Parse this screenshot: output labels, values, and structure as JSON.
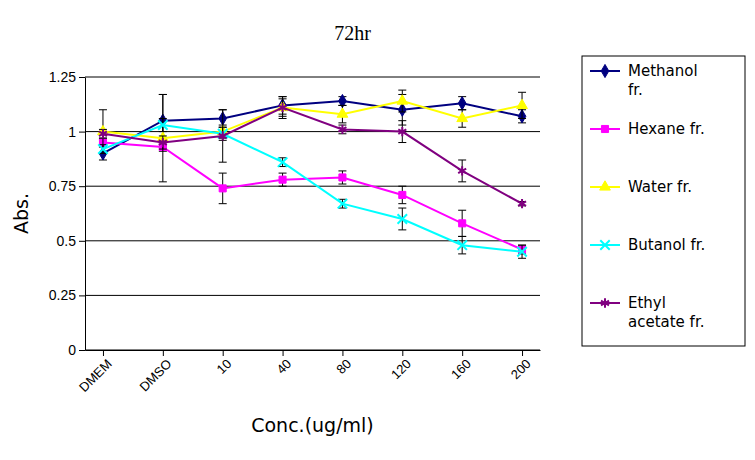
{
  "chart_data": {
    "type": "line",
    "title": "72hr",
    "x_label": "Conc.(ug/ml)",
    "y_label": "Abs.",
    "categories": [
      "DMEM",
      "DMSO",
      "10",
      "40",
      "80",
      "120",
      "160",
      "200"
    ],
    "ylim": [
      0,
      1.25
    ],
    "yticks": [
      0,
      0.25,
      0.5,
      0.75,
      1,
      1.25
    ],
    "grid": true,
    "legend": "right",
    "series": [
      {
        "name": "Methanol fr.",
        "color": "#000080",
        "marker": "diamond",
        "values": [
          0.9,
          1.05,
          1.06,
          1.12,
          1.14,
          1.1,
          1.13,
          1.07
        ],
        "errors": [
          0.03,
          0.12,
          0.04,
          0.04,
          0.02,
          0.07,
          0.03,
          0.03
        ]
      },
      {
        "name": "Hexane fr.",
        "color": "#ff00ff",
        "marker": "square",
        "values": [
          0.95,
          0.93,
          0.74,
          0.78,
          0.79,
          0.71,
          0.58,
          0.46
        ],
        "errors": [
          0.02,
          0.02,
          0.07,
          0.03,
          0.03,
          0.04,
          0.06,
          0.02
        ]
      },
      {
        "name": "Water fr.",
        "color": "#ffff00",
        "marker": "triangle",
        "values": [
          1.0,
          0.97,
          1.0,
          1.11,
          1.08,
          1.14,
          1.06,
          1.12
        ],
        "errors": [
          0.1,
          0.2,
          0.03,
          0.04,
          0.04,
          0.05,
          0.04,
          0.06
        ]
      },
      {
        "name": "Butanol fr.",
        "color": "#00ffff",
        "marker": "x",
        "values": [
          0.92,
          1.03,
          0.99,
          0.86,
          0.67,
          0.6,
          0.48,
          0.45
        ],
        "errors": [
          0.02,
          0.03,
          0.03,
          0.02,
          0.02,
          0.05,
          0.04,
          0.03
        ]
      },
      {
        "name": "Ethyl acetate fr.",
        "color": "#800080",
        "marker": "asterisk",
        "values": [
          0.99,
          0.95,
          0.98,
          1.11,
          1.01,
          1.0,
          0.82,
          0.67
        ],
        "errors": [
          0.02,
          0.03,
          0.12,
          0.05,
          0.02,
          0.05,
          0.05,
          0.01
        ]
      }
    ]
  }
}
